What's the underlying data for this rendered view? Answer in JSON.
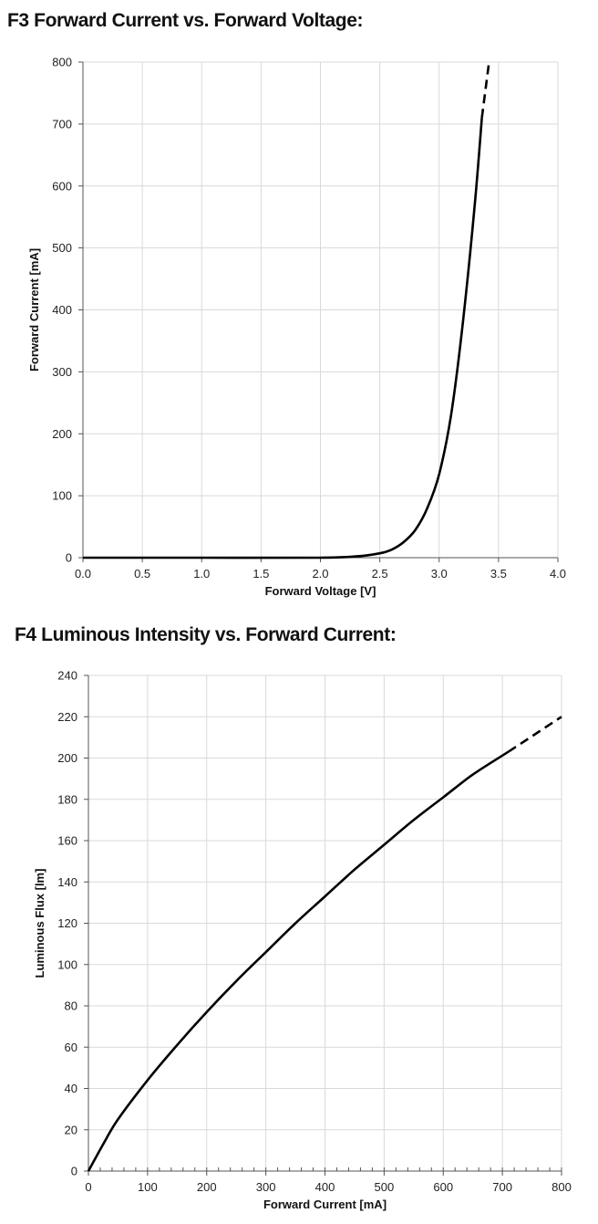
{
  "chart_data": [
    {
      "id": "f3",
      "type": "line",
      "title": "F3 Forward Current vs. Forward Voltage:",
      "xlabel": "Forward Voltage [V]",
      "ylabel": "Forward Current [mA]",
      "xlim": [
        0,
        4
      ],
      "ylim": [
        0,
        800
      ],
      "xticks": [
        "0.0",
        "0.5",
        "1.0",
        "1.5",
        "2.0",
        "2.5",
        "3.0",
        "3.5",
        "4.0"
      ],
      "yticks": [
        "0",
        "100",
        "200",
        "300",
        "400",
        "500",
        "600",
        "700",
        "800"
      ],
      "grid": true,
      "series": [
        {
          "values": [
            [
              0.0,
              0
            ],
            [
              1.0,
              0
            ],
            [
              2.0,
              0
            ],
            [
              2.3,
              2
            ],
            [
              2.5,
              7
            ],
            [
              2.6,
              13
            ],
            [
              2.7,
              25
            ],
            [
              2.8,
              45
            ],
            [
              2.9,
              80
            ],
            [
              3.0,
              135
            ],
            [
              3.1,
              230
            ],
            [
              3.2,
              380
            ],
            [
              3.3,
              570
            ],
            [
              3.36,
              710
            ]
          ],
          "style": "solid",
          "color": "#000000"
        },
        {
          "values": [
            [
              3.36,
              710
            ],
            [
              3.42,
              800
            ]
          ],
          "style": "dashed",
          "color": "#000000"
        }
      ]
    },
    {
      "id": "f4",
      "type": "line",
      "title": "F4 Luminous Intensity vs. Forward Current:",
      "xlabel": "Forward Current [mA]",
      "ylabel": "Luminous Flux [lm]",
      "xlim": [
        0,
        800
      ],
      "ylim": [
        0,
        240
      ],
      "xticks": [
        "0",
        "100",
        "200",
        "300",
        "400",
        "500",
        "600",
        "700",
        "800"
      ],
      "yticks": [
        "0",
        "20",
        "40",
        "60",
        "80",
        "100",
        "120",
        "140",
        "160",
        "180",
        "200",
        "220",
        "240"
      ],
      "grid": true,
      "series": [
        {
          "values": [
            [
              0,
              0
            ],
            [
              25,
              13
            ],
            [
              50,
              25
            ],
            [
              100,
              44
            ],
            [
              150,
              61
            ],
            [
              200,
              77
            ],
            [
              250,
              92
            ],
            [
              300,
              106
            ],
            [
              350,
              120
            ],
            [
              400,
              133
            ],
            [
              450,
              146
            ],
            [
              500,
              158
            ],
            [
              550,
              170
            ],
            [
              600,
              181
            ],
            [
              650,
              192
            ],
            [
              710,
              203
            ]
          ],
          "style": "solid",
          "color": "#000000"
        },
        {
          "values": [
            [
              710,
              203
            ],
            [
              800,
              220
            ]
          ],
          "style": "dashed",
          "color": "#000000"
        }
      ]
    }
  ]
}
